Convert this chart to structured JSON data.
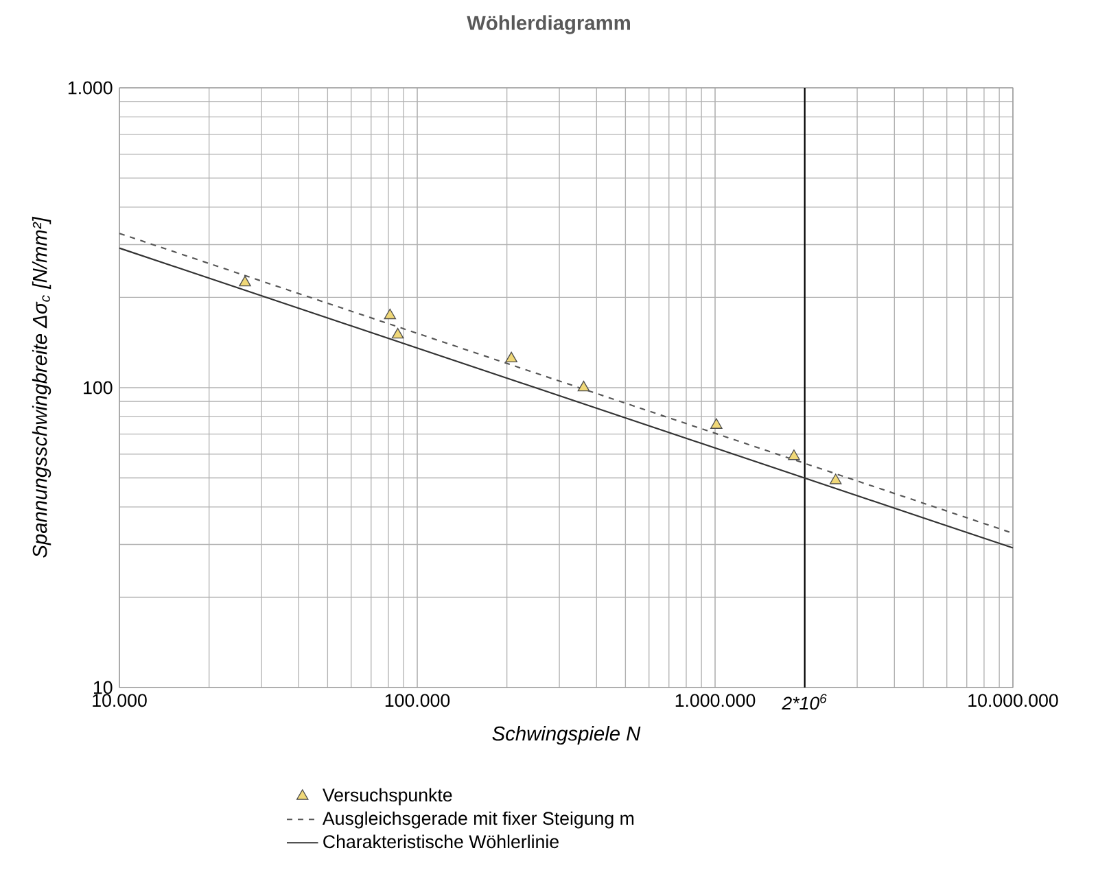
{
  "chart_data": {
    "type": "line",
    "title": "Wöhlerdiagramm",
    "xlabel": "Schwingspiele N",
    "ylabel": "Spannungsschwingbreite Δσ$_{c}$ [N/mm²]",
    "log": "xy",
    "grid": true,
    "legend": "bottom",
    "xlim": [
      10000,
      10000000
    ],
    "ylim": [
      10,
      1000
    ],
    "xticks": [
      {
        "value": 10000,
        "label": "10.000"
      },
      {
        "value": 100000,
        "label": "100.000"
      },
      {
        "value": 1000000,
        "label": "1.000.000"
      },
      {
        "value": 2000000,
        "label": "2*10$^{6}$"
      },
      {
        "value": 10000000,
        "label": "10.000.000"
      }
    ],
    "yticks": [
      10,
      100,
      {
        "value": 1000,
        "label": "1.000"
      }
    ],
    "ref_lines": [
      {
        "axis": "x",
        "value": 2000000,
        "color": "#000000"
      }
    ],
    "series": [
      {
        "name": "Versuchspunkte",
        "type": "scatter",
        "marker": "triangle",
        "color": "#f0d878",
        "x": [
          26400,
          81000,
          86000,
          207000,
          362000,
          1010000,
          1840000,
          2540000
        ],
        "values": [
          224,
          174,
          150,
          125,
          100,
          75,
          59,
          49
        ]
      },
      {
        "name": "Ausgleichsgerade mit fixer Steigung m",
        "line_style": "dashed",
        "color": "#555555",
        "x": [
          10000,
          10000000
        ],
        "values": [
          327,
          32.7
        ]
      },
      {
        "name": "Charakteristische Wöhlerlinie",
        "line_style": "solid",
        "color": "#333333",
        "x": [
          10000,
          10000000
        ],
        "values": [
          292,
          29.2
        ]
      }
    ]
  }
}
